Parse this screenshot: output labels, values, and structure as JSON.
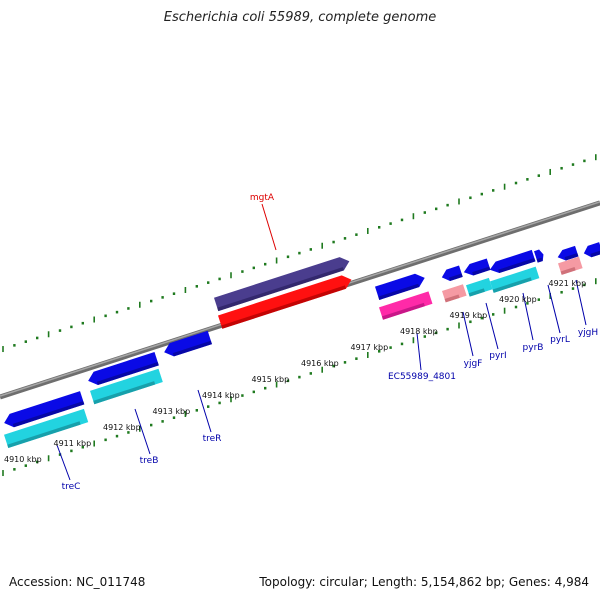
{
  "title": "Escherichia coli 55989, complete genome",
  "footer": {
    "accession": "Accession: NC_011748",
    "summary": "Topology: circular; Length: 5,154,862 bp; Genes: 4,984"
  },
  "colors": {
    "backbone": "#8c8c8c",
    "tick": "#1f7a1f",
    "highlight_label": "#dd0000",
    "gene_label": "#0000aa"
  },
  "scale": {
    "unit": "kbp",
    "tick_labels": [
      "4910 kbp",
      "4911 kbp",
      "4912 kbp",
      "4913 kbp",
      "4914 kbp",
      "4915 kbp",
      "4916 kbp",
      "4917 kbp",
      "4918 kbp",
      "4919 kbp",
      "4920 kbp",
      "4921 kbp"
    ]
  },
  "genes": [
    {
      "label": "treC"
    },
    {
      "label": "treB"
    },
    {
      "label": "treR"
    },
    {
      "label": "mgtA"
    },
    {
      "label": "EC55989_4801"
    },
    {
      "label": "yjgF"
    },
    {
      "label": "pyrI"
    },
    {
      "label": "pyrB"
    },
    {
      "label": "pyrL"
    },
    {
      "label": "yjgH"
    }
  ]
}
